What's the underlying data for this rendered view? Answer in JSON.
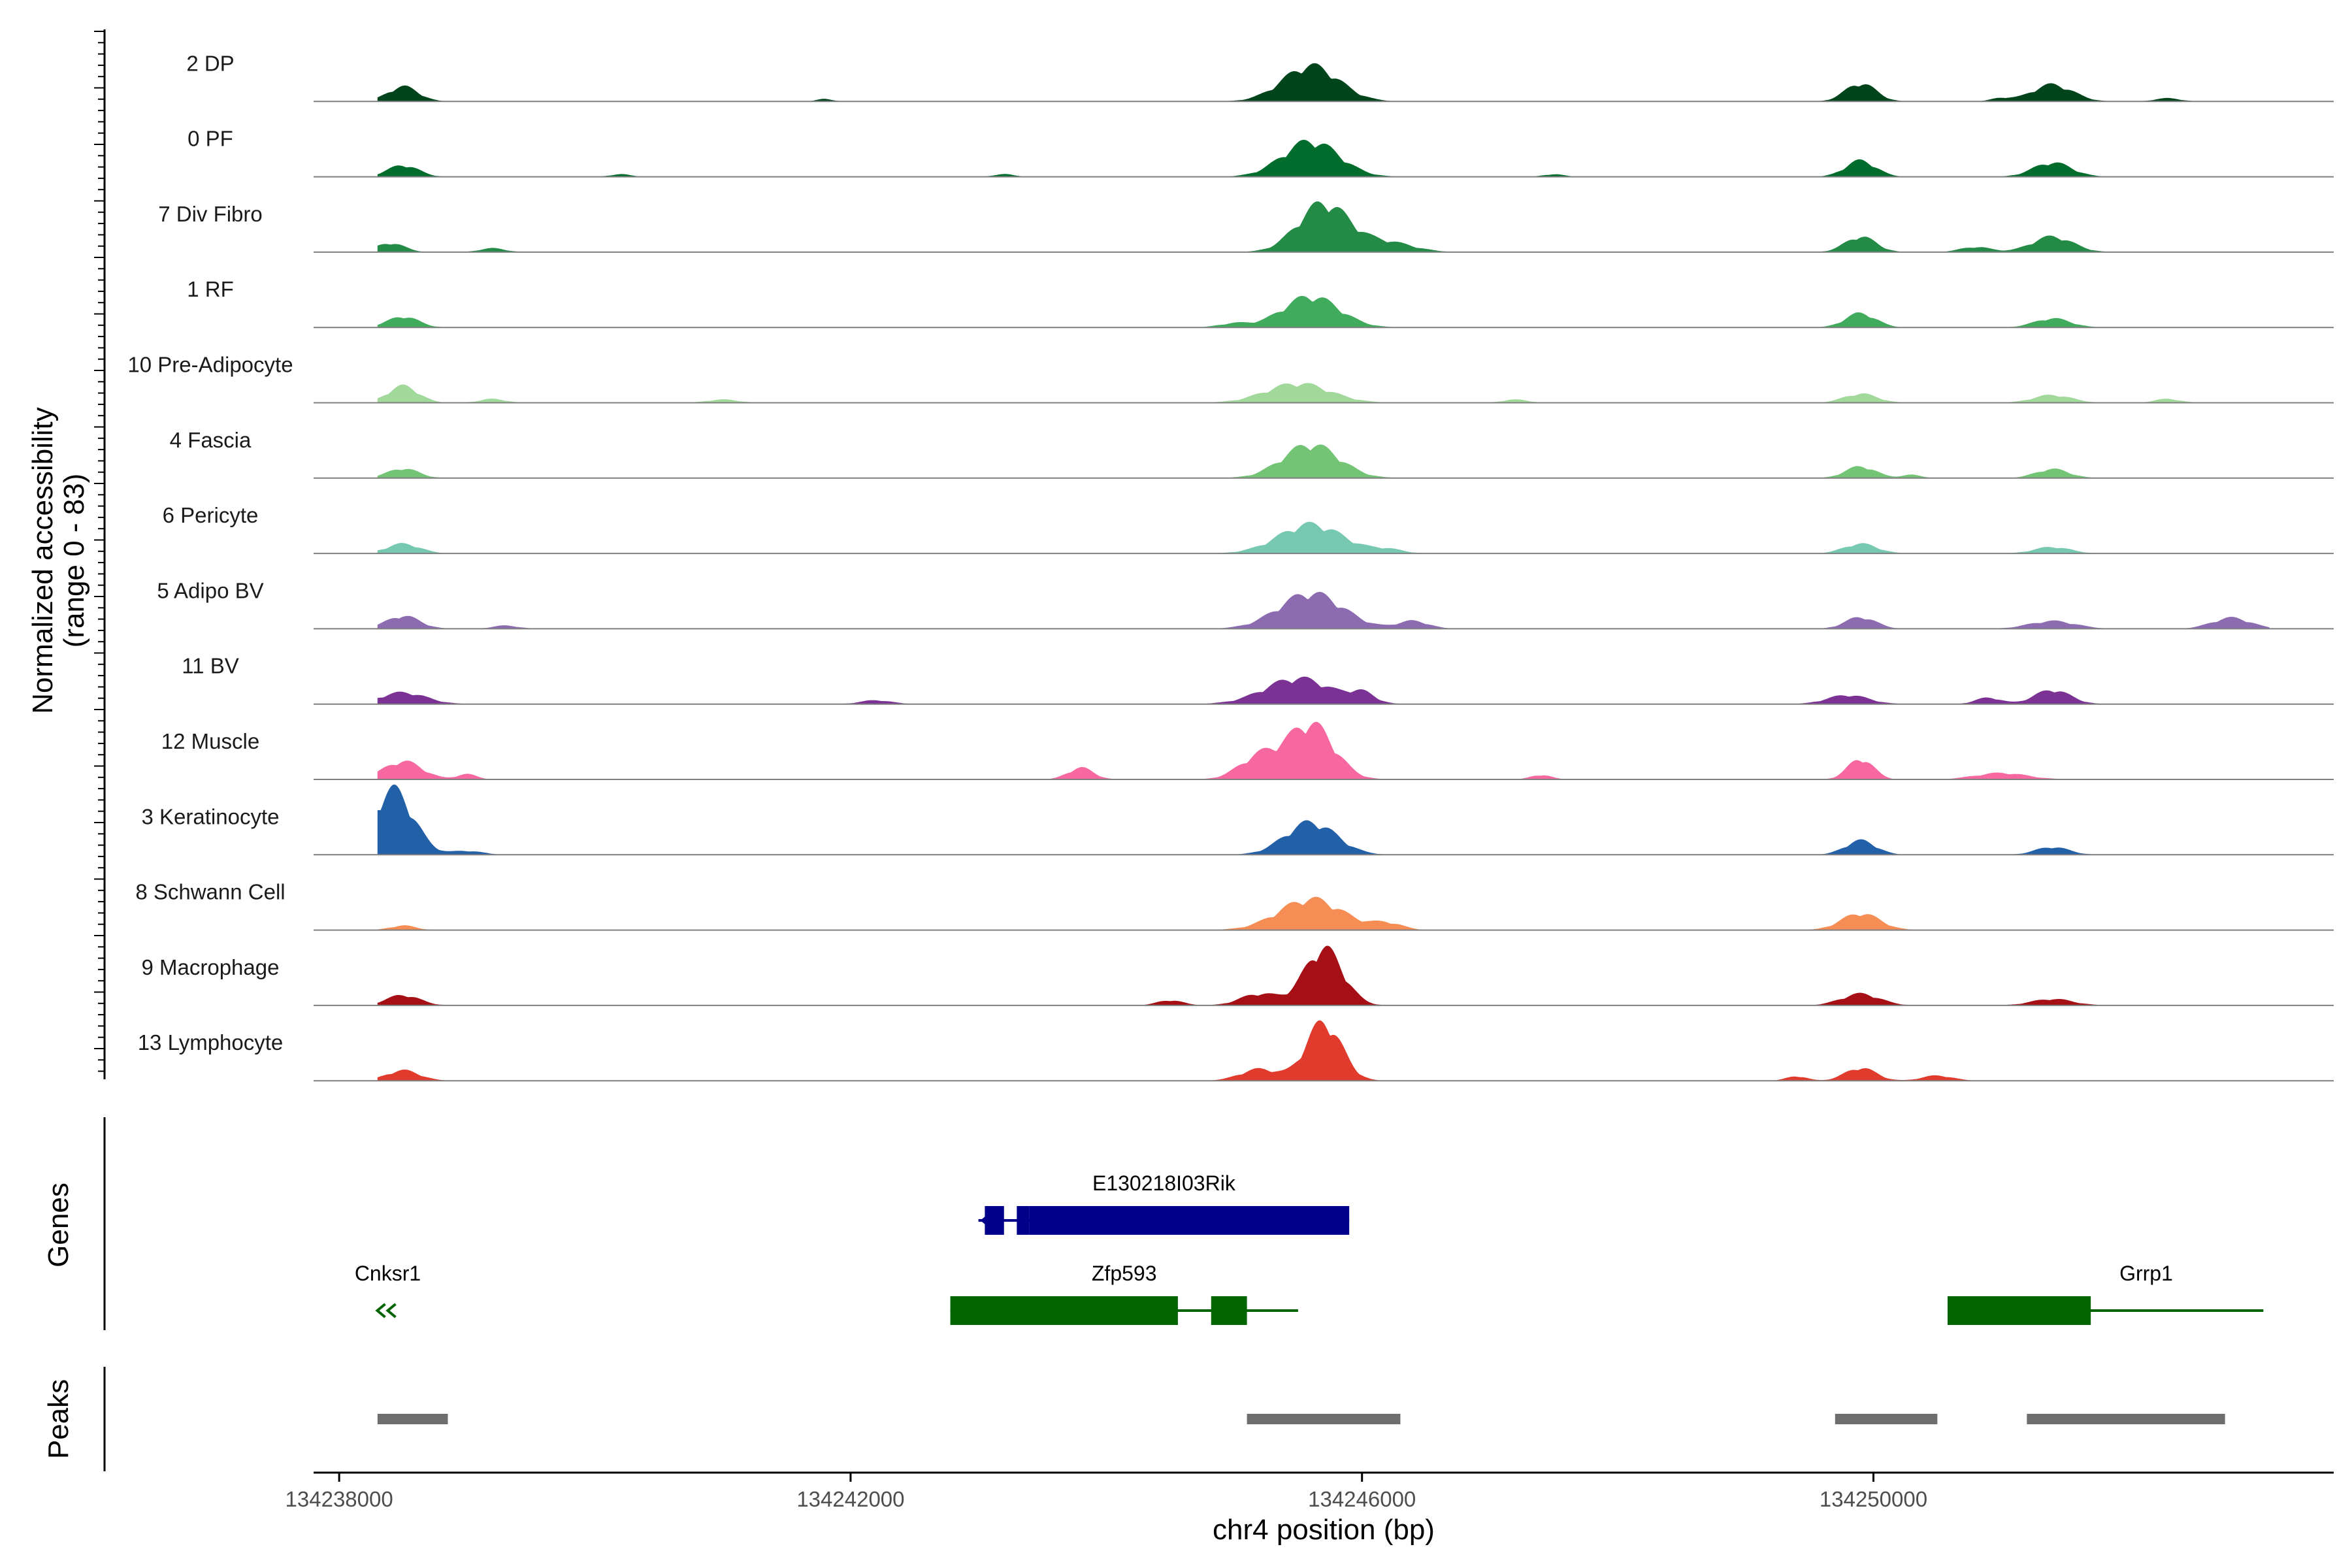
{
  "chart_data": {
    "type": "area",
    "chromosome": "chr4",
    "xlabel": "chr4 position (bp)",
    "ylabel": "Normalized accessibility",
    "ylabel_sub": "(range 0 - 83)",
    "xlim": [
      134237800,
      134253600
    ],
    "x_ticks": [
      {
        "value": 134238000,
        "label": "134238000"
      },
      {
        "value": 134242000,
        "label": "134242000"
      },
      {
        "value": 134246000,
        "label": "134246000"
      },
      {
        "value": 134250000,
        "label": "134250000"
      }
    ],
    "ylim": [
      0,
      83
    ],
    "series": [
      {
        "name": "2 DP",
        "color": "#00441b",
        "peaks": [
          [
            134238500,
            0.23,
            120
          ],
          [
            134245600,
            0.55,
            220
          ],
          [
            134249900,
            0.28,
            120
          ],
          [
            134251400,
            0.26,
            160
          ],
          [
            134241800,
            0.04,
            60
          ],
          [
            134251000,
            0.05,
            80
          ],
          [
            134252300,
            0.05,
            100
          ]
        ]
      },
      {
        "name": "0 PF",
        "color": "#006d2c",
        "peaks": [
          [
            134238500,
            0.18,
            120
          ],
          [
            134245600,
            0.55,
            220
          ],
          [
            134249900,
            0.25,
            120
          ],
          [
            134251400,
            0.22,
            150
          ],
          [
            134240200,
            0.04,
            80
          ],
          [
            134243200,
            0.04,
            80
          ],
          [
            134247500,
            0.04,
            80
          ]
        ]
      },
      {
        "name": "7 Div Fibro",
        "color": "#238b45",
        "peaks": [
          [
            134238400,
            0.14,
            110
          ],
          [
            134245700,
            0.75,
            200
          ],
          [
            134246200,
            0.15,
            200
          ],
          [
            134249900,
            0.24,
            120
          ],
          [
            134251400,
            0.24,
            160
          ],
          [
            134239200,
            0.06,
            100
          ],
          [
            134250800,
            0.08,
            120
          ]
        ]
      },
      {
        "name": "1 RF",
        "color": "#41ab5d",
        "peaks": [
          [
            134238500,
            0.17,
            120
          ],
          [
            134245600,
            0.48,
            220
          ],
          [
            134249900,
            0.22,
            120
          ],
          [
            134251400,
            0.14,
            140
          ],
          [
            134245000,
            0.06,
            120
          ]
        ]
      },
      {
        "name": "10 Pre-Adipocyte",
        "color": "#a1d99b",
        "peaks": [
          [
            134238500,
            0.26,
            120
          ],
          [
            134245500,
            0.3,
            250
          ],
          [
            134249900,
            0.14,
            130
          ],
          [
            134251400,
            0.12,
            150
          ],
          [
            134241000,
            0.05,
            120
          ],
          [
            134239200,
            0.06,
            100
          ],
          [
            134247200,
            0.05,
            100
          ],
          [
            134252300,
            0.06,
            100
          ]
        ]
      },
      {
        "name": "4 Fascia",
        "color": "#74c476",
        "peaks": [
          [
            134238500,
            0.15,
            120
          ],
          [
            134245600,
            0.52,
            220
          ],
          [
            134249900,
            0.18,
            120
          ],
          [
            134251400,
            0.14,
            130
          ],
          [
            134250300,
            0.05,
            80
          ]
        ]
      },
      {
        "name": "6 Pericyte",
        "color": "#76c8b0",
        "peaks": [
          [
            134238500,
            0.15,
            130
          ],
          [
            134245600,
            0.45,
            250
          ],
          [
            134249900,
            0.15,
            130
          ],
          [
            134251400,
            0.1,
            140
          ],
          [
            134246200,
            0.06,
            120
          ]
        ]
      },
      {
        "name": "5 Adipo BV",
        "color": "#8c6bb1",
        "peaks": [
          [
            134238500,
            0.2,
            130
          ],
          [
            134245600,
            0.55,
            250
          ],
          [
            134246400,
            0.12,
            120
          ],
          [
            134249900,
            0.18,
            120
          ],
          [
            134251400,
            0.12,
            180
          ],
          [
            134252800,
            0.17,
            150
          ],
          [
            134239300,
            0.05,
            100
          ]
        ]
      },
      {
        "name": "11 BV",
        "color": "#7b3294",
        "peaks": [
          [
            134238500,
            0.18,
            180
          ],
          [
            134245500,
            0.4,
            260
          ],
          [
            134246000,
            0.15,
            100
          ],
          [
            134249800,
            0.14,
            160
          ],
          [
            134251400,
            0.22,
            140
          ],
          [
            134250900,
            0.1,
            100
          ],
          [
            134242200,
            0.06,
            120
          ]
        ]
      },
      {
        "name": "12 Muscle",
        "color": "#f768a1",
        "peaks": [
          [
            134238500,
            0.28,
            150
          ],
          [
            134245600,
            0.85,
            180
          ],
          [
            134245200,
            0.35,
            160
          ],
          [
            134249900,
            0.32,
            100
          ],
          [
            134251000,
            0.1,
            200
          ],
          [
            134243800,
            0.18,
            100
          ],
          [
            134239000,
            0.08,
            80
          ],
          [
            134247400,
            0.07,
            80
          ]
        ]
      },
      {
        "name": "3 Keratinocyte",
        "color": "#2260a8",
        "peaks": [
          [
            134238420,
            1.0,
            160
          ],
          [
            134245600,
            0.5,
            200
          ],
          [
            134249900,
            0.22,
            120
          ],
          [
            134251400,
            0.12,
            130
          ],
          [
            134239000,
            0.06,
            120
          ]
        ]
      },
      {
        "name": "8 Schwann Cell",
        "color": "#f58d55",
        "peaks": [
          [
            134238500,
            0.07,
            100
          ],
          [
            134245600,
            0.48,
            250
          ],
          [
            134249900,
            0.26,
            150
          ],
          [
            134246200,
            0.1,
            120
          ]
        ]
      },
      {
        "name": "9 Macrophage",
        "color": "#a50f15",
        "peaks": [
          [
            134238500,
            0.16,
            130
          ],
          [
            134245700,
            0.88,
            150
          ],
          [
            134245200,
            0.18,
            150
          ],
          [
            134249900,
            0.18,
            150
          ],
          [
            134251400,
            0.1,
            160
          ],
          [
            134244500,
            0.08,
            100
          ]
        ]
      },
      {
        "name": "13 Lymphocyte",
        "color": "#e13b2d",
        "peaks": [
          [
            134238500,
            0.16,
            130
          ],
          [
            134245700,
            0.9,
            140
          ],
          [
            134245200,
            0.18,
            150
          ],
          [
            134249900,
            0.2,
            120
          ],
          [
            134250500,
            0.08,
            120
          ],
          [
            134249400,
            0.07,
            80
          ]
        ]
      }
    ],
    "genes": [
      {
        "name": "E130218I03Rik",
        "start": 134243000,
        "end": 134245900,
        "strand": "-",
        "color": "#00008b",
        "blocks": [
          [
            134243050,
            134243200
          ],
          [
            134243300,
            134243400
          ],
          [
            134243400,
            134245900
          ]
        ]
      },
      {
        "name": "Cnksr1",
        "start": 134238280,
        "end": 134238480,
        "strand": "-",
        "color": "#006400",
        "blocks": []
      },
      {
        "name": "Zfp593",
        "start": 134242780,
        "end": 134245500,
        "strand": "+",
        "color": "#006400",
        "blocks": [
          [
            134242780,
            134244560
          ],
          [
            134244820,
            134245100
          ]
        ]
      },
      {
        "name": "Grrp1",
        "start": 134250580,
        "end": 134253050,
        "strand": "+",
        "color": "#006400",
        "blocks": [
          [
            134250580,
            134251700
          ]
        ]
      }
    ],
    "peaks": [
      [
        134238300,
        134238850
      ],
      [
        134245100,
        134246300
      ],
      [
        134249700,
        134250500
      ],
      [
        134251200,
        134252750
      ]
    ],
    "panel_labels": {
      "genes": "Genes",
      "peaks": "Peaks"
    }
  }
}
